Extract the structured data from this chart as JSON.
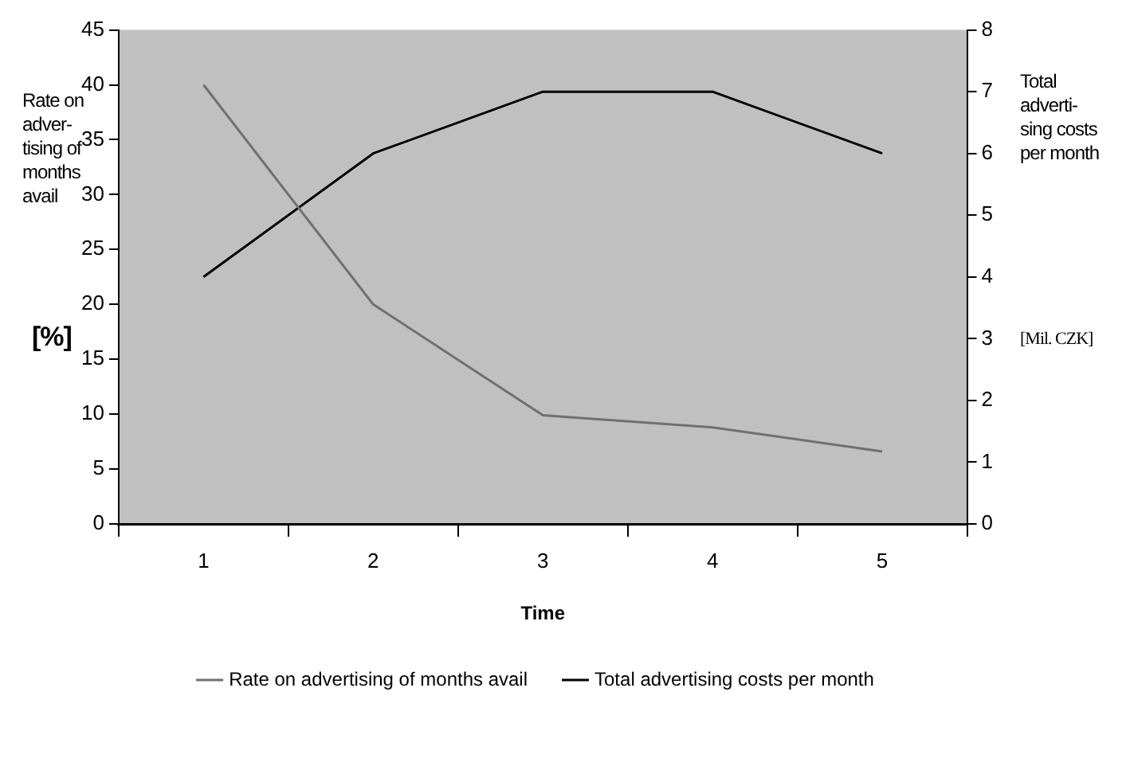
{
  "chart_data": {
    "type": "line",
    "categories": [
      "1",
      "2",
      "3",
      "4",
      "5"
    ],
    "series": [
      {
        "name": "Rate on advertising of months avail",
        "color": "#707070",
        "values": [
          40,
          20,
          9.9,
          8.8,
          6.6
        ]
      },
      {
        "name": "Total advertising costs per month",
        "color": "#000000",
        "values": [
          4,
          6,
          7,
          7,
          6
        ],
        "axis": "y2"
      }
    ],
    "xlabel": "Time",
    "ylabel": "Rate on adver-tising of months avail",
    "y2label": "Total adverti-sing costs per month",
    "annotations": [
      "[%]",
      "[Mil. CZK]"
    ],
    "ylim": [
      0,
      45
    ],
    "yticks": [
      0,
      5,
      10,
      15,
      20,
      25,
      30,
      35,
      40,
      45
    ],
    "y2lim": [
      0,
      8
    ],
    "y2ticks": [
      0,
      1,
      2,
      3,
      4,
      5,
      6,
      7,
      8
    ],
    "legend": "bottom",
    "marker": "none",
    "line_style": "solid"
  }
}
